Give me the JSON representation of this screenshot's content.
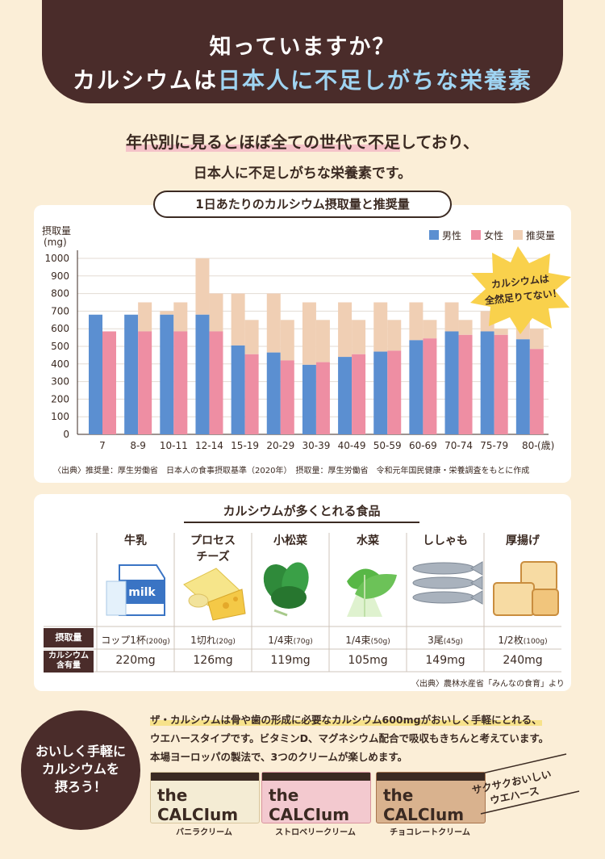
{
  "header": {
    "line1": "知っていますか？",
    "line2_a": "カルシウムは",
    "line2_b": "日本人に不足しがちな栄養素"
  },
  "lead": {
    "line1_a": "年代別に見るとほぼ全ての世代で不足",
    "line1_b": "しており、",
    "line2": "日本人に不足しがちな栄養素です。"
  },
  "chart_section": {
    "title": "1日あたりのカルシウム摂取量と推奨量",
    "callout": [
      "カルシウムは",
      "全然足りてない！"
    ],
    "source": "〈出典〉推奨量：厚生労働省　日本人の食事摂取基準（2020年）　摂取量：厚生労働省　令和元年国民健康・栄養調査をもとに作成"
  },
  "chart_data": {
    "type": "bar",
    "ylabel": "摂取量",
    "yunit": "(mg)",
    "xunit": "(歳)",
    "ylim": [
      0,
      1000
    ],
    "yticks": [
      0,
      100,
      200,
      300,
      400,
      500,
      600,
      700,
      800,
      900,
      1000
    ],
    "categories": [
      "7",
      "8-9",
      "10-11",
      "12-14",
      "15-19",
      "20-29",
      "30-39",
      "40-49",
      "50-59",
      "60-69",
      "70-74",
      "75-79",
      "80-"
    ],
    "series": [
      {
        "name": "男性",
        "color": "#5b8fd1",
        "intake": [
          680,
          680,
          680,
          680,
          505,
          465,
          395,
          440,
          470,
          535,
          585,
          585,
          540
        ],
        "recommended": [
          600,
          650,
          700,
          1000,
          800,
          800,
          750,
          750,
          750,
          750,
          750,
          700,
          700
        ]
      },
      {
        "name": "女性",
        "color": "#ee8ea3",
        "intake": [
          585,
          585,
          585,
          585,
          455,
          420,
          410,
          455,
          475,
          545,
          565,
          565,
          485
        ],
        "recommended": [
          550,
          750,
          750,
          800,
          650,
          650,
          650,
          650,
          650,
          650,
          650,
          600,
          600
        ]
      }
    ],
    "legend": [
      "男性",
      "女性",
      "推奨量"
    ],
    "recommended_color": "#f0cfb4"
  },
  "foods": {
    "title": "カルシウムが多くとれる食品",
    "row_label_intake": "摂取量",
    "row_label_content": [
      "カルシウム",
      "含有量"
    ],
    "items": [
      {
        "name": "牛乳",
        "name2": "",
        "serving": "コップ1杯",
        "serving_unit": "(200g)",
        "calcium": "220mg",
        "icon": "milk-icon"
      },
      {
        "name": "プロセス",
        "name2": "チーズ",
        "serving": "1切れ",
        "serving_unit": "(20g)",
        "calcium": "126mg",
        "icon": "cheese-icon"
      },
      {
        "name": "小松菜",
        "name2": "",
        "serving": "1/4束",
        "serving_unit": "(70g)",
        "calcium": "119mg",
        "icon": "komatsuna-icon"
      },
      {
        "name": "水菜",
        "name2": "",
        "serving": "1/4束",
        "serving_unit": "(50g)",
        "calcium": "105mg",
        "icon": "mizuna-icon"
      },
      {
        "name": "ししゃも",
        "name2": "",
        "serving": "3尾",
        "serving_unit": "(45g)",
        "calcium": "149mg",
        "icon": "shishamo-icon"
      },
      {
        "name": "厚揚げ",
        "name2": "",
        "serving": "1/2枚",
        "serving_unit": "(100g)",
        "calcium": "240mg",
        "icon": "atsuage-icon"
      }
    ],
    "source": "〈出典〉農林水産省「みんなの食育」より"
  },
  "promo": {
    "circle": [
      "おいしく手軽に",
      "カルシウムを",
      "摂ろう！"
    ],
    "desc_1a": "ザ・カルシウムは骨や歯の形成に必要なカルシウム600mgがおいしく手軽にとれる、",
    "desc_2": "ウエハースタイプです。ビタミンD、マグネシウム配合で吸収もきちんと考えています。",
    "desc_3": "本場ヨーロッパの製法で、3つのクリームが楽しめます。",
    "products": [
      {
        "label": "バニラクリーム",
        "brand": "the CALCIum",
        "color": "#f4ecd4"
      },
      {
        "label": "ストロベリークリーム",
        "brand": "the CALCIum",
        "color": "#f3c9cf"
      },
      {
        "label": "チョコレートクリーム",
        "brand": "the CALCIum",
        "color": "#d9b28e"
      }
    ],
    "crispy": [
      "サクサクおいしい",
      "ウエハース"
    ]
  }
}
